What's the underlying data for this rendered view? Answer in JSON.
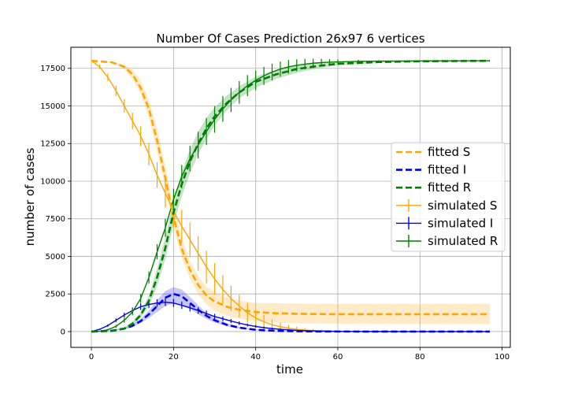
{
  "chart_data": {
    "type": "line",
    "title": "Number Of Cases Prediction 26x97 6 vertices",
    "xlabel": "time",
    "ylabel": "number of cases",
    "xlim": [
      -5,
      102
    ],
    "ylim": [
      -1050,
      18900
    ],
    "xticks": [
      0,
      20,
      40,
      60,
      80,
      100
    ],
    "yticks": [
      0,
      2500,
      5000,
      7500,
      10000,
      12500,
      15000,
      17500
    ],
    "grid": true,
    "legend_position": "center-right",
    "population": 18000,
    "fitted_series": [
      {
        "name": "fitted S",
        "color": "#ffa500",
        "style": "dashed",
        "x": [
          0,
          5,
          8,
          10,
          12,
          14,
          16,
          18,
          20,
          22,
          24,
          26,
          28,
          30,
          33,
          36,
          40,
          45,
          50,
          60,
          70,
          80,
          97
        ],
        "y": [
          18000,
          17900,
          17600,
          17100,
          16200,
          14800,
          12700,
          10200,
          7600,
          5500,
          4100,
          3100,
          2400,
          2000,
          1650,
          1450,
          1300,
          1220,
          1180,
          1150,
          1150,
          1150,
          1150
        ],
        "band_low": [
          18000,
          17900,
          17450,
          16800,
          15800,
          14200,
          12000,
          9500,
          6900,
          4900,
          3500,
          2500,
          1800,
          1400,
          1050,
          850,
          700,
          600,
          550,
          530,
          520,
          510,
          500
        ],
        "band_high": [
          18000,
          17950,
          17750,
          17400,
          16700,
          15400,
          13500,
          11000,
          8400,
          6200,
          4700,
          3700,
          3000,
          2600,
          2250,
          2050,
          1900,
          1880,
          1860,
          1850,
          1850,
          1850,
          1850
        ]
      },
      {
        "name": "fitted I",
        "color": "#0000ee",
        "style": "dashed",
        "x": [
          0,
          5,
          8,
          10,
          12,
          14,
          16,
          18,
          20,
          22,
          24,
          26,
          28,
          30,
          33,
          36,
          40,
          45,
          50,
          55,
          60,
          70,
          80,
          97
        ],
        "y": [
          0,
          60,
          200,
          380,
          700,
          1150,
          1700,
          2250,
          2500,
          2350,
          1900,
          1450,
          1050,
          750,
          450,
          260,
          120,
          50,
          20,
          8,
          4,
          2,
          1,
          0
        ],
        "band_low": [
          0,
          40,
          150,
          300,
          560,
          900,
          1300,
          1700,
          1900,
          1800,
          1500,
          1150,
          850,
          600,
          350,
          200,
          90,
          35,
          15,
          5,
          2,
          1,
          0,
          0
        ],
        "band_high": [
          0,
          80,
          250,
          460,
          850,
          1400,
          2100,
          2700,
          2950,
          2800,
          2300,
          1750,
          1250,
          900,
          550,
          320,
          150,
          65,
          25,
          10,
          5,
          2,
          1,
          0
        ]
      },
      {
        "name": "fitted R",
        "color": "#008000",
        "style": "dashed",
        "x": [
          0,
          5,
          8,
          10,
          12,
          14,
          16,
          18,
          20,
          22,
          24,
          26,
          28,
          30,
          33,
          36,
          40,
          45,
          50,
          55,
          60,
          70,
          80,
          97
        ],
        "y": [
          0,
          40,
          200,
          520,
          1100,
          2050,
          3600,
          5550,
          7900,
          9800,
          11300,
          12500,
          13500,
          14300,
          15200,
          15900,
          16600,
          17100,
          17450,
          17650,
          17800,
          17920,
          17970,
          18000
        ],
        "band_low": [
          0,
          20,
          120,
          380,
          900,
          1700,
          3000,
          4800,
          7100,
          9000,
          10500,
          11800,
          12800,
          13700,
          14700,
          15500,
          16200,
          16800,
          17200,
          17500,
          17700,
          17850,
          17950,
          18000
        ],
        "band_high": [
          0,
          60,
          280,
          680,
          1300,
          2400,
          4200,
          6300,
          8700,
          10600,
          12100,
          13300,
          14200,
          14900,
          15700,
          16300,
          16950,
          17400,
          17700,
          17850,
          17950,
          17980,
          18000,
          18000
        ]
      }
    ],
    "simulated_series": [
      {
        "name": "simulated S",
        "color": "#ffa500",
        "x": [
          0,
          2,
          4,
          6,
          8,
          10,
          12,
          14,
          16,
          18,
          20,
          22,
          24,
          26,
          28,
          30,
          32,
          34,
          36,
          38,
          40,
          42,
          44,
          46,
          48,
          50,
          52,
          54,
          56,
          58,
          60,
          65,
          70,
          80,
          97
        ],
        "y": [
          18000,
          17600,
          16900,
          16000,
          15000,
          14000,
          13000,
          11800,
          10400,
          9200,
          8000,
          7000,
          6100,
          5200,
          4300,
          3500,
          2800,
          2200,
          1700,
          1250,
          900,
          650,
          450,
          320,
          220,
          150,
          100,
          70,
          50,
          30,
          20,
          10,
          5,
          2,
          0
        ],
        "err": [
          0,
          150,
          250,
          350,
          450,
          550,
          650,
          750,
          850,
          950,
          1050,
          1100,
          1150,
          1150,
          1100,
          1050,
          950,
          850,
          750,
          650,
          550,
          450,
          350,
          280,
          220,
          170,
          130,
          100,
          80,
          60,
          45,
          25,
          15,
          5,
          0
        ]
      },
      {
        "name": "simulated I",
        "color": "#0000ee",
        "x": [
          0,
          2,
          4,
          6,
          8,
          10,
          12,
          14,
          16,
          18,
          20,
          22,
          24,
          26,
          28,
          30,
          32,
          34,
          36,
          38,
          40,
          42,
          44,
          46,
          48,
          50,
          52,
          54,
          56,
          58,
          60,
          65,
          70,
          80,
          97
        ],
        "y": [
          0,
          150,
          400,
          750,
          1100,
          1400,
          1650,
          1800,
          1900,
          1950,
          1900,
          1750,
          1580,
          1400,
          1200,
          1000,
          850,
          700,
          560,
          440,
          340,
          260,
          200,
          150,
          110,
          80,
          60,
          45,
          30,
          20,
          15,
          8,
          4,
          1,
          0
        ],
        "err": [
          0,
          40,
          80,
          120,
          160,
          200,
          220,
          240,
          250,
          260,
          260,
          250,
          240,
          220,
          200,
          180,
          160,
          140,
          120,
          100,
          85,
          70,
          60,
          50,
          40,
          30,
          25,
          20,
          15,
          10,
          8,
          5,
          3,
          1,
          0
        ]
      },
      {
        "name": "simulated R",
        "color": "#008000",
        "x": [
          0,
          2,
          4,
          6,
          8,
          10,
          12,
          14,
          16,
          18,
          20,
          22,
          24,
          26,
          28,
          30,
          32,
          34,
          36,
          38,
          40,
          42,
          44,
          46,
          48,
          50,
          52,
          54,
          56,
          58,
          60,
          65,
          70,
          80,
          97
        ],
        "y": [
          0,
          20,
          120,
          350,
          750,
          1300,
          2200,
          3600,
          5300,
          6900,
          8800,
          10300,
          11500,
          12400,
          13300,
          14100,
          14800,
          15400,
          15900,
          16350,
          16700,
          17000,
          17250,
          17450,
          17600,
          17700,
          17780,
          17840,
          17880,
          17910,
          17930,
          17960,
          17980,
          17990,
          18000
        ],
        "err": [
          0,
          20,
          60,
          100,
          160,
          220,
          300,
          400,
          500,
          600,
          700,
          780,
          850,
          880,
          900,
          880,
          850,
          800,
          750,
          700,
          650,
          600,
          550,
          500,
          450,
          400,
          350,
          300,
          250,
          200,
          160,
          100,
          60,
          20,
          0
        ]
      }
    ],
    "legend": [
      "fitted S",
      "fitted I",
      "fitted R",
      "simulated S",
      "simulated I",
      "simulated R"
    ]
  }
}
